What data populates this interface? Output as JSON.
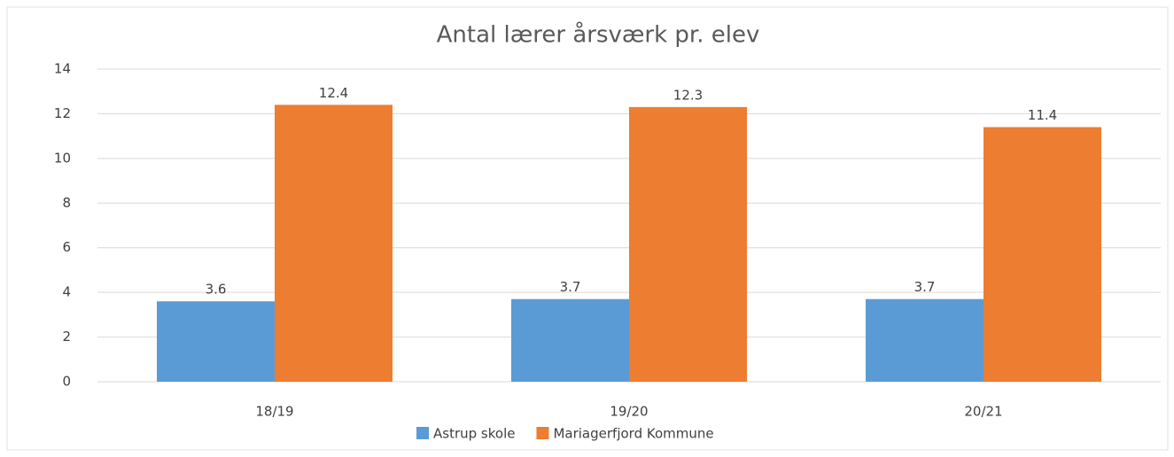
{
  "chart_data": {
    "type": "bar",
    "title": "Antal lærer årsværk pr. elev",
    "categories": [
      "18/19",
      "19/20",
      "20/21"
    ],
    "series": [
      {
        "name": "Astrup skole",
        "color": "#5b9bd5",
        "values": [
          3.6,
          3.7,
          3.7
        ]
      },
      {
        "name": "Mariagerfjord Kommune",
        "color": "#ed7d31",
        "values": [
          12.4,
          12.3,
          11.4
        ]
      }
    ],
    "ylim": [
      0,
      14
    ],
    "yticks": [
      0,
      2,
      4,
      6,
      8,
      10,
      12,
      14
    ],
    "grid": true,
    "legend": "bottom"
  }
}
